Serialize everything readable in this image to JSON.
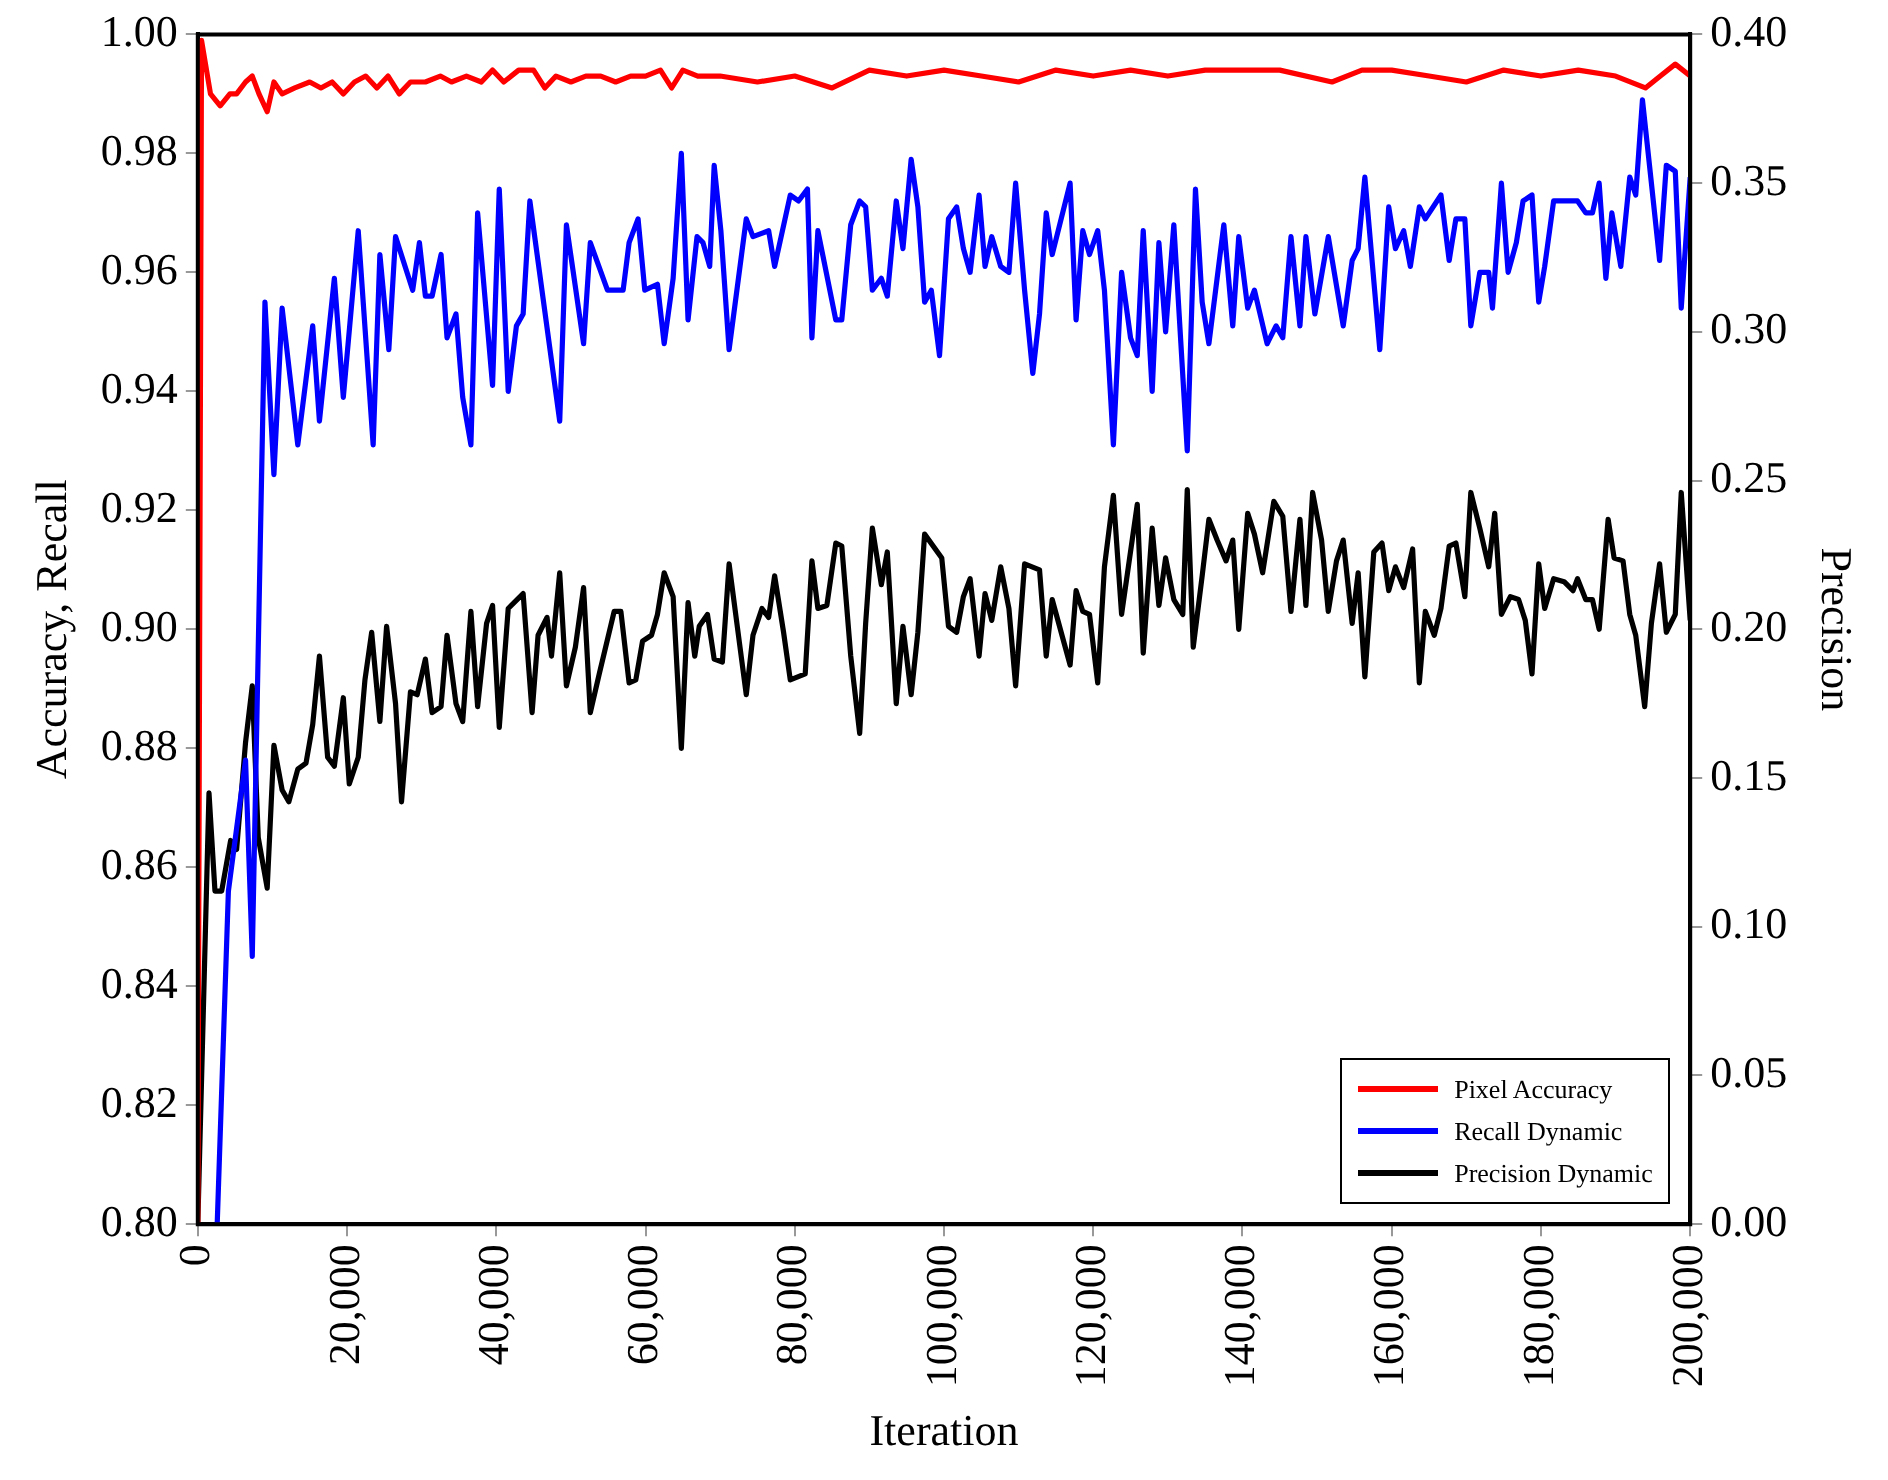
{
  "chart_data": {
    "type": "line",
    "xlabel": "Iteration",
    "ylabel": "Accuracy, Recall",
    "y2label": "Precision",
    "xlim": [
      0,
      200000
    ],
    "xticks": [
      {
        "value": 0,
        "label": "0"
      },
      {
        "value": 20000,
        "label": "20,000"
      },
      {
        "value": 40000,
        "label": "40,000"
      },
      {
        "value": 60000,
        "label": "60,000"
      },
      {
        "value": 80000,
        "label": "80,000"
      },
      {
        "value": 100000,
        "label": "100,000"
      },
      {
        "value": 120000,
        "label": "120,000"
      },
      {
        "value": 140000,
        "label": "140,000"
      },
      {
        "value": 160000,
        "label": "160,000"
      },
      {
        "value": 180000,
        "label": "180,000"
      },
      {
        "value": 200000,
        "label": "200,000"
      }
    ],
    "ylim": [
      0.8,
      1.0
    ],
    "yticks": [
      {
        "value": 0.8,
        "label": "0.80"
      },
      {
        "value": 0.82,
        "label": "0.82"
      },
      {
        "value": 0.84,
        "label": "0.84"
      },
      {
        "value": 0.86,
        "label": "0.86"
      },
      {
        "value": 0.88,
        "label": "0.88"
      },
      {
        "value": 0.9,
        "label": "0.90"
      },
      {
        "value": 0.92,
        "label": "0.92"
      },
      {
        "value": 0.94,
        "label": "0.94"
      },
      {
        "value": 0.96,
        "label": "0.96"
      },
      {
        "value": 0.98,
        "label": "0.98"
      },
      {
        "value": 1.0,
        "label": "1.00"
      }
    ],
    "y2lim": [
      0,
      0.4
    ],
    "y2ticks": [
      {
        "value": 0,
        "label": "0.00"
      },
      {
        "value": 0.05,
        "label": "0.05"
      },
      {
        "value": 0.1,
        "label": "0.10"
      },
      {
        "value": 0.15,
        "label": "0.15"
      },
      {
        "value": 0.2,
        "label": "0.20"
      },
      {
        "value": 0.25,
        "label": "0.25"
      },
      {
        "value": 0.3,
        "label": "0.30"
      },
      {
        "value": 0.35,
        "label": "0.35"
      },
      {
        "value": 0.4,
        "label": "0.40"
      }
    ],
    "grid": false,
    "legend": "bottom right",
    "marker": "none",
    "line_style": "solid",
    "series": [
      {
        "name": "Pixel Accuracy",
        "color": "#ff0000",
        "x": [
          0,
          500,
          1700,
          3000,
          4300,
          5200,
          6400,
          7300,
          8200,
          9300,
          10200,
          11300,
          13000,
          15000,
          16500,
          18000,
          19500,
          21000,
          22500,
          24000,
          25500,
          27000,
          28500,
          30500,
          32500,
          34000,
          36000,
          38000,
          39500,
          41000,
          43000,
          45000,
          46500,
          48000,
          50000,
          52000,
          54000,
          56000,
          58000,
          60000,
          62000,
          63500,
          65000,
          67000,
          70000,
          75000,
          80000,
          85000,
          90000,
          95000,
          100000,
          105000,
          110000,
          115000,
          120000,
          125000,
          130000,
          135000,
          140000,
          145000,
          152000,
          156000,
          160000,
          165000,
          170000,
          175000,
          180000,
          185000,
          190000,
          194000,
          196000,
          198000,
          200000
        ],
        "values": [
          0.8,
          0.999,
          0.99,
          0.988,
          0.99,
          0.99,
          0.992,
          0.993,
          0.99,
          0.987,
          0.992,
          0.99,
          0.991,
          0.992,
          0.991,
          0.992,
          0.99,
          0.992,
          0.993,
          0.991,
          0.993,
          0.99,
          0.992,
          0.992,
          0.993,
          0.992,
          0.993,
          0.992,
          0.994,
          0.992,
          0.994,
          0.994,
          0.991,
          0.993,
          0.992,
          0.993,
          0.993,
          0.992,
          0.993,
          0.993,
          0.994,
          0.991,
          0.994,
          0.993,
          0.993,
          0.992,
          0.993,
          0.991,
          0.994,
          0.993,
          0.994,
          0.993,
          0.992,
          0.994,
          0.993,
          0.994,
          0.993,
          0.994,
          0.994,
          0.994,
          0.992,
          0.994,
          0.994,
          0.993,
          0.992,
          0.994,
          0.993,
          0.994,
          0.993,
          0.991,
          0.993,
          0.995,
          0.993
        ]
      },
      {
        "name": "Recall Dynamic",
        "color": "#0000ff",
        "x": [
          2600,
          4100,
          6400,
          7300,
          9000,
          10200,
          11300,
          13400,
          15400,
          16300,
          18300,
          19500,
          21500,
          23500,
          24400,
          25600,
          26500,
          28800,
          29700,
          30500,
          31400,
          32600,
          33400,
          34600,
          35500,
          36600,
          37500,
          39500,
          40400,
          41600,
          42700,
          43600,
          44500,
          48500,
          49400,
          51700,
          52600,
          54900,
          57000,
          57800,
          59000,
          59900,
          61600,
          62500,
          63700,
          64800,
          65700,
          66900,
          67700,
          68600,
          69200,
          70100,
          71200,
          73500,
          74400,
          76500,
          77300,
          79400,
          80500,
          81700,
          82300,
          83100,
          85500,
          86300,
          87500,
          88700,
          89500,
          90400,
          91600,
          92400,
          93600,
          94500,
          95600,
          96500,
          97400,
          98300,
          99400,
          100600,
          101700,
          102600,
          103500,
          104700,
          105500,
          106400,
          107600,
          108700,
          109600,
          110800,
          111900,
          112800,
          113700,
          114500,
          116900,
          117700,
          118600,
          119500,
          120600,
          121500,
          122700,
          123800,
          125000,
          125900,
          126700,
          127900,
          128800,
          129700,
          130800,
          132600,
          133700,
          134600,
          135500,
          137500,
          138700,
          139500,
          140700,
          141600,
          143300,
          144500,
          145400,
          146500,
          147700,
          148500,
          149700,
          151500,
          153500,
          154700,
          155500,
          156400,
          158400,
          159600,
          160500,
          161600,
          162500,
          163700,
          164500,
          166600,
          167700,
          168600,
          169800,
          170600,
          171800,
          173000,
          173500,
          174700,
          175600,
          176700,
          177600,
          178800,
          179700,
          180500,
          181700,
          183700,
          184900,
          186000,
          186900,
          187800,
          188700,
          189500,
          190700,
          191900,
          192700,
          193600,
          194800,
          195900,
          196800,
          198000,
          198800,
          200000
        ],
        "values": [
          0.8,
          0.856,
          0.878,
          0.845,
          0.955,
          0.926,
          0.954,
          0.931,
          0.951,
          0.935,
          0.959,
          0.939,
          0.967,
          0.931,
          0.963,
          0.947,
          0.966,
          0.957,
          0.965,
          0.956,
          0.956,
          0.963,
          0.949,
          0.953,
          0.939,
          0.931,
          0.97,
          0.941,
          0.974,
          0.94,
          0.951,
          0.953,
          0.972,
          0.935,
          0.968,
          0.948,
          0.965,
          0.957,
          0.957,
          0.965,
          0.969,
          0.957,
          0.958,
          0.948,
          0.959,
          0.98,
          0.952,
          0.966,
          0.965,
          0.961,
          0.978,
          0.967,
          0.947,
          0.969,
          0.966,
          0.967,
          0.961,
          0.973,
          0.972,
          0.974,
          0.949,
          0.967,
          0.952,
          0.952,
          0.968,
          0.972,
          0.971,
          0.957,
          0.959,
          0.956,
          0.972,
          0.964,
          0.979,
          0.971,
          0.955,
          0.957,
          0.946,
          0.969,
          0.971,
          0.964,
          0.96,
          0.973,
          0.961,
          0.966,
          0.961,
          0.96,
          0.975,
          0.957,
          0.943,
          0.953,
          0.97,
          0.963,
          0.975,
          0.952,
          0.967,
          0.963,
          0.967,
          0.957,
          0.931,
          0.96,
          0.949,
          0.946,
          0.967,
          0.94,
          0.965,
          0.95,
          0.968,
          0.93,
          0.974,
          0.955,
          0.948,
          0.968,
          0.951,
          0.966,
          0.954,
          0.957,
          0.948,
          0.951,
          0.949,
          0.966,
          0.951,
          0.966,
          0.953,
          0.966,
          0.951,
          0.962,
          0.964,
          0.976,
          0.947,
          0.971,
          0.964,
          0.967,
          0.961,
          0.971,
          0.969,
          0.973,
          0.962,
          0.969,
          0.969,
          0.951,
          0.96,
          0.96,
          0.954,
          0.975,
          0.96,
          0.965,
          0.972,
          0.973,
          0.955,
          0.961,
          0.972,
          0.972,
          0.972,
          0.97,
          0.97,
          0.975,
          0.959,
          0.97,
          0.961,
          0.976,
          0.973,
          0.989,
          0.975,
          0.962,
          0.978,
          0.977,
          0.954,
          0.976
        ]
      },
      {
        "name": "Precision Dynamic",
        "color": "#000000",
        "axis": "y2",
        "x": [
          0,
          1500,
          2300,
          3200,
          4400,
          5200,
          6400,
          7300,
          8100,
          9300,
          10200,
          11300,
          12200,
          13400,
          14500,
          15400,
          16300,
          17400,
          18300,
          19500,
          20300,
          21500,
          22400,
          23300,
          24400,
          25300,
          26500,
          27300,
          28500,
          29400,
          30500,
          31400,
          32600,
          33400,
          34600,
          35500,
          36600,
          37500,
          38700,
          39500,
          40400,
          41600,
          43600,
          44800,
          45600,
          46800,
          47400,
          48500,
          49400,
          50600,
          51700,
          52600,
          53800,
          55800,
          56700,
          57800,
          58700,
          59600,
          60800,
          61600,
          62500,
          63700,
          64800,
          65700,
          66600,
          67200,
          68300,
          69200,
          70300,
          71200,
          72400,
          73500,
          74400,
          75600,
          76500,
          77300,
          78500,
          79400,
          81400,
          82300,
          83100,
          84300,
          85500,
          86300,
          87500,
          88700,
          89500,
          90400,
          91600,
          92400,
          93600,
          94500,
          95600,
          96500,
          97400,
          99700,
          100600,
          101700,
          102600,
          103500,
          104700,
          105500,
          106400,
          107600,
          108700,
          109600,
          110800,
          112800,
          113700,
          114500,
          115700,
          116900,
          117700,
          118600,
          119500,
          120600,
          121500,
          122700,
          123800,
          125900,
          126700,
          127900,
          128800,
          129700,
          130800,
          132000,
          132600,
          133400,
          134600,
          135500,
          136600,
          137800,
          138700,
          139500,
          140700,
          141600,
          142700,
          144200,
          145400,
          146500,
          147700,
          148500,
          149400,
          150600,
          151500,
          152600,
          153500,
          154700,
          155500,
          156400,
          157600,
          158700,
          159600,
          160500,
          161600,
          162800,
          163700,
          164500,
          165700,
          166600,
          167700,
          168600,
          169800,
          170600,
          171800,
          173000,
          173800,
          174700,
          175900,
          177000,
          177900,
          178800,
          179700,
          180500,
          181700,
          183100,
          184300,
          184900,
          186000,
          186900,
          187800,
          189000,
          189800,
          191000,
          191900,
          192700,
          193900,
          194800,
          195900,
          196800,
          198000,
          198800,
          200000
        ],
        "values": [
          0.0,
          0.145,
          0.112,
          0.112,
          0.129,
          0.126,
          0.162,
          0.181,
          0.13,
          0.113,
          0.161,
          0.146,
          0.142,
          0.153,
          0.155,
          0.168,
          0.191,
          0.157,
          0.154,
          0.177,
          0.148,
          0.157,
          0.183,
          0.199,
          0.169,
          0.201,
          0.175,
          0.142,
          0.179,
          0.178,
          0.19,
          0.172,
          0.174,
          0.198,
          0.175,
          0.169,
          0.206,
          0.174,
          0.202,
          0.208,
          0.167,
          0.207,
          0.212,
          0.172,
          0.198,
          0.204,
          0.191,
          0.219,
          0.181,
          0.194,
          0.214,
          0.172,
          0.185,
          0.206,
          0.206,
          0.182,
          0.183,
          0.196,
          0.198,
          0.205,
          0.219,
          0.211,
          0.16,
          0.209,
          0.191,
          0.201,
          0.205,
          0.19,
          0.189,
          0.222,
          0.199,
          0.178,
          0.198,
          0.207,
          0.204,
          0.218,
          0.199,
          0.183,
          0.185,
          0.223,
          0.207,
          0.208,
          0.229,
          0.228,
          0.191,
          0.165,
          0.202,
          0.234,
          0.215,
          0.226,
          0.175,
          0.201,
          0.178,
          0.199,
          0.232,
          0.224,
          0.201,
          0.199,
          0.211,
          0.217,
          0.191,
          0.212,
          0.203,
          0.221,
          0.207,
          0.181,
          0.222,
          0.22,
          0.191,
          0.21,
          0.199,
          0.188,
          0.213,
          0.206,
          0.205,
          0.182,
          0.221,
          0.245,
          0.205,
          0.242,
          0.192,
          0.234,
          0.208,
          0.224,
          0.21,
          0.205,
          0.247,
          0.194,
          0.218,
          0.237,
          0.23,
          0.223,
          0.23,
          0.2,
          0.239,
          0.232,
          0.219,
          0.243,
          0.238,
          0.206,
          0.237,
          0.208,
          0.246,
          0.23,
          0.206,
          0.223,
          0.23,
          0.202,
          0.219,
          0.184,
          0.226,
          0.229,
          0.213,
          0.221,
          0.214,
          0.227,
          0.182,
          0.206,
          0.198,
          0.207,
          0.228,
          0.229,
          0.211,
          0.246,
          0.234,
          0.221,
          0.239,
          0.205,
          0.211,
          0.21,
          0.203,
          0.185,
          0.222,
          0.207,
          0.217,
          0.216,
          0.213,
          0.217,
          0.21,
          0.21,
          0.2,
          0.237,
          0.224,
          0.223,
          0.205,
          0.198,
          0.174,
          0.202,
          0.222,
          0.199,
          0.205,
          0.246,
          0.203
        ]
      }
    ]
  }
}
